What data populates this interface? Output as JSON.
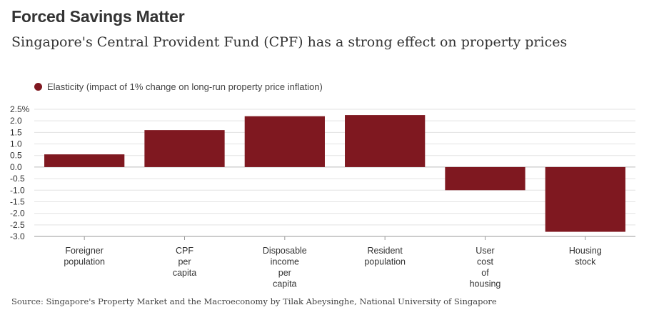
{
  "header": {
    "title": "Forced Savings Matter",
    "subtitle": "Singapore's Central Provident Fund (CPF) has a strong effect on property prices"
  },
  "source": "Source: Singapore's Property Market and the Macroeconomy by Tilak Abeysinghe, National University of Singapore",
  "chart_data": {
    "type": "bar",
    "title": "",
    "xlabel": "",
    "ylabel": "",
    "categories": [
      [
        "Foreigner",
        "population"
      ],
      [
        "CPF",
        "per",
        "capita"
      ],
      [
        "Disposable",
        "income",
        "per",
        "capita"
      ],
      [
        "Resident",
        "population"
      ],
      [
        "User",
        "cost",
        "of",
        "housing"
      ],
      [
        "Housing",
        "stock"
      ]
    ],
    "series": [
      {
        "name": "Elasticity (impact of 1% change on long-run property price inflation)",
        "values": [
          0.55,
          1.6,
          2.2,
          2.25,
          -1.0,
          -2.8
        ],
        "color": "#7f1820"
      }
    ],
    "ylim": [
      -3.0,
      2.5
    ],
    "yticks": [
      "2.5%",
      "2.0",
      "1.5",
      "1.0",
      "0.5",
      "0.0",
      "-0.5",
      "-1.0",
      "-1.5",
      "-2.0",
      "-2.5",
      "-3.0"
    ],
    "ytick_values": [
      2.5,
      2.0,
      1.5,
      1.0,
      0.5,
      0.0,
      -0.5,
      -1.0,
      -1.5,
      -2.0,
      -2.5,
      -3.0
    ],
    "grid": "horizontal",
    "legend_position": "top-left"
  }
}
